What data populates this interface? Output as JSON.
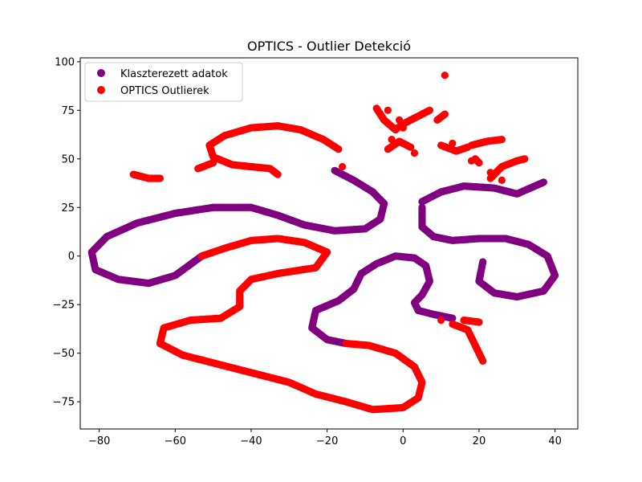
{
  "chart_data": {
    "type": "scatter",
    "title": "OPTICS - Outlier Detekció",
    "xlabel": "",
    "ylabel": "",
    "xlim": [
      -85,
      46
    ],
    "ylim": [
      -89,
      102
    ],
    "x_ticks": [
      -80,
      -60,
      -40,
      -20,
      0,
      20,
      40
    ],
    "y_ticks": [
      -75,
      -50,
      -25,
      0,
      25,
      50,
      75,
      100
    ],
    "x_tick_labels": [
      "−80",
      "−60",
      "−40",
      "−20",
      "0",
      "20",
      "40"
    ],
    "y_tick_labels": [
      "−75",
      "−50",
      "−25",
      "0",
      "25",
      "50",
      "75",
      "100"
    ],
    "grid": false,
    "legend_position": "top-left",
    "colors": {
      "clustered": "#800080",
      "outlier": "#ff0000"
    },
    "series": [
      {
        "name": "Klaszterezett adatok",
        "color": "#800080",
        "curves": [
          [
            [
              -18,
              44
            ],
            [
              -13,
              39
            ],
            [
              -8,
              33
            ],
            [
              -5,
              27
            ],
            [
              -6,
              19
            ],
            [
              -10,
              14
            ],
            [
              -18,
              13
            ],
            [
              -26,
              16
            ],
            [
              -33,
              21
            ],
            [
              -40,
              25
            ],
            [
              -50,
              25
            ],
            [
              -60,
              22
            ],
            [
              -70,
              17
            ],
            [
              -78,
              10
            ],
            [
              -82,
              2
            ],
            [
              -81,
              -7
            ],
            [
              -75,
              -12
            ],
            [
              -67,
              -14
            ],
            [
              -60,
              -10
            ],
            [
              -53,
              0
            ]
          ],
          [
            [
              -15,
              -45
            ],
            [
              -20,
              -43
            ],
            [
              -24,
              -37
            ],
            [
              -23,
              -28
            ],
            [
              -17,
              -23
            ],
            [
              -13,
              -17
            ],
            [
              -11,
              -9
            ],
            [
              -7,
              -4
            ],
            [
              -2,
              0
            ],
            [
              3,
              -1
            ],
            [
              6,
              -5
            ],
            [
              7,
              -13
            ],
            [
              5,
              -20
            ],
            [
              3,
              -24
            ],
            [
              4,
              -28
            ],
            [
              8,
              -30
            ],
            [
              13,
              -32
            ]
          ],
          [
            [
              5,
              28
            ],
            [
              10,
              33
            ],
            [
              16,
              36
            ],
            [
              24,
              35
            ],
            [
              30,
              32
            ],
            [
              37,
              38
            ]
          ],
          [
            [
              5,
              25
            ],
            [
              5,
              15
            ],
            [
              8,
              10
            ],
            [
              13,
              8
            ],
            [
              20,
              9
            ],
            [
              27,
              9
            ],
            [
              33,
              6
            ],
            [
              38,
              0
            ],
            [
              40,
              -10
            ],
            [
              37,
              -18
            ],
            [
              30,
              -21
            ],
            [
              24,
              -19
            ],
            [
              20,
              -13
            ],
            [
              21,
              -3
            ]
          ]
        ]
      },
      {
        "name": "OPTICS Outlierek",
        "color": "#ff0000",
        "curves": [
          [
            [
              -53,
              0
            ],
            [
              -47,
              4
            ],
            [
              -40,
              8
            ],
            [
              -33,
              9
            ],
            [
              -26,
              7
            ],
            [
              -20,
              2
            ],
            [
              -23,
              -6
            ],
            [
              -33,
              -9
            ],
            [
              -40,
              -12
            ],
            [
              -43,
              -18
            ],
            [
              -43,
              -26
            ],
            [
              -48,
              -32
            ],
            [
              -56,
              -33
            ],
            [
              -63,
              -37
            ],
            [
              -64,
              -45
            ],
            [
              -58,
              -51
            ],
            [
              -50,
              -55
            ],
            [
              -40,
              -60
            ],
            [
              -30,
              -65
            ],
            [
              -23,
              -71
            ],
            [
              -15,
              -75
            ],
            [
              -8,
              -79
            ],
            [
              0,
              -78
            ],
            [
              4,
              -73
            ],
            [
              5,
              -65
            ],
            [
              3,
              -57
            ],
            [
              -2,
              -50
            ],
            [
              -9,
              -46
            ],
            [
              -15,
              -45
            ]
          ],
          [
            [
              -17,
              55
            ],
            [
              -21,
              60
            ],
            [
              -27,
              65
            ],
            [
              -33,
              67
            ],
            [
              -40,
              66
            ],
            [
              -47,
              62
            ],
            [
              -51,
              57
            ],
            [
              -50,
              51
            ],
            [
              -45,
              47
            ],
            [
              -40,
              46
            ],
            [
              -35,
              45
            ],
            [
              -33,
              42
            ]
          ],
          [
            [
              -54,
              45
            ],
            [
              -50,
              48
            ]
          ],
          [
            [
              -71,
              42
            ],
            [
              -67,
              40
            ],
            [
              -64,
              40
            ]
          ],
          [
            [
              -7,
              76
            ],
            [
              -5,
              70
            ],
            [
              -2,
              65
            ],
            [
              0,
              68
            ],
            [
              4,
              72
            ],
            [
              7,
              75
            ]
          ],
          [
            [
              -4,
              55
            ],
            [
              -1,
              59
            ],
            [
              2,
              56
            ]
          ],
          [
            [
              9,
              70
            ],
            [
              11,
              73
            ]
          ],
          [
            [
              10,
              57
            ],
            [
              14,
              54
            ],
            [
              17,
              56
            ]
          ],
          [
            [
              18,
              57
            ],
            [
              22,
              59
            ],
            [
              26,
              60
            ]
          ],
          [
            [
              23,
              40
            ],
            [
              26,
              46
            ],
            [
              30,
              49
            ],
            [
              32,
              50
            ]
          ],
          [
            [
              20,
              48
            ],
            [
              19,
              50
            ]
          ],
          [
            [
              13,
              -35
            ],
            [
              17,
              -38
            ],
            [
              21,
              -54
            ]
          ],
          [
            [
              16,
              -33
            ],
            [
              20,
              -34
            ]
          ]
        ],
        "points": [
          [
            11,
            93
          ],
          [
            -4,
            75
          ],
          [
            0,
            66
          ],
          [
            -1,
            70
          ],
          [
            -3,
            60
          ],
          [
            3,
            53
          ],
          [
            18,
            49
          ],
          [
            13,
            58
          ],
          [
            23,
            43
          ],
          [
            26,
            39
          ],
          [
            10,
            -33
          ],
          [
            -16,
            46
          ]
        ]
      }
    ]
  }
}
